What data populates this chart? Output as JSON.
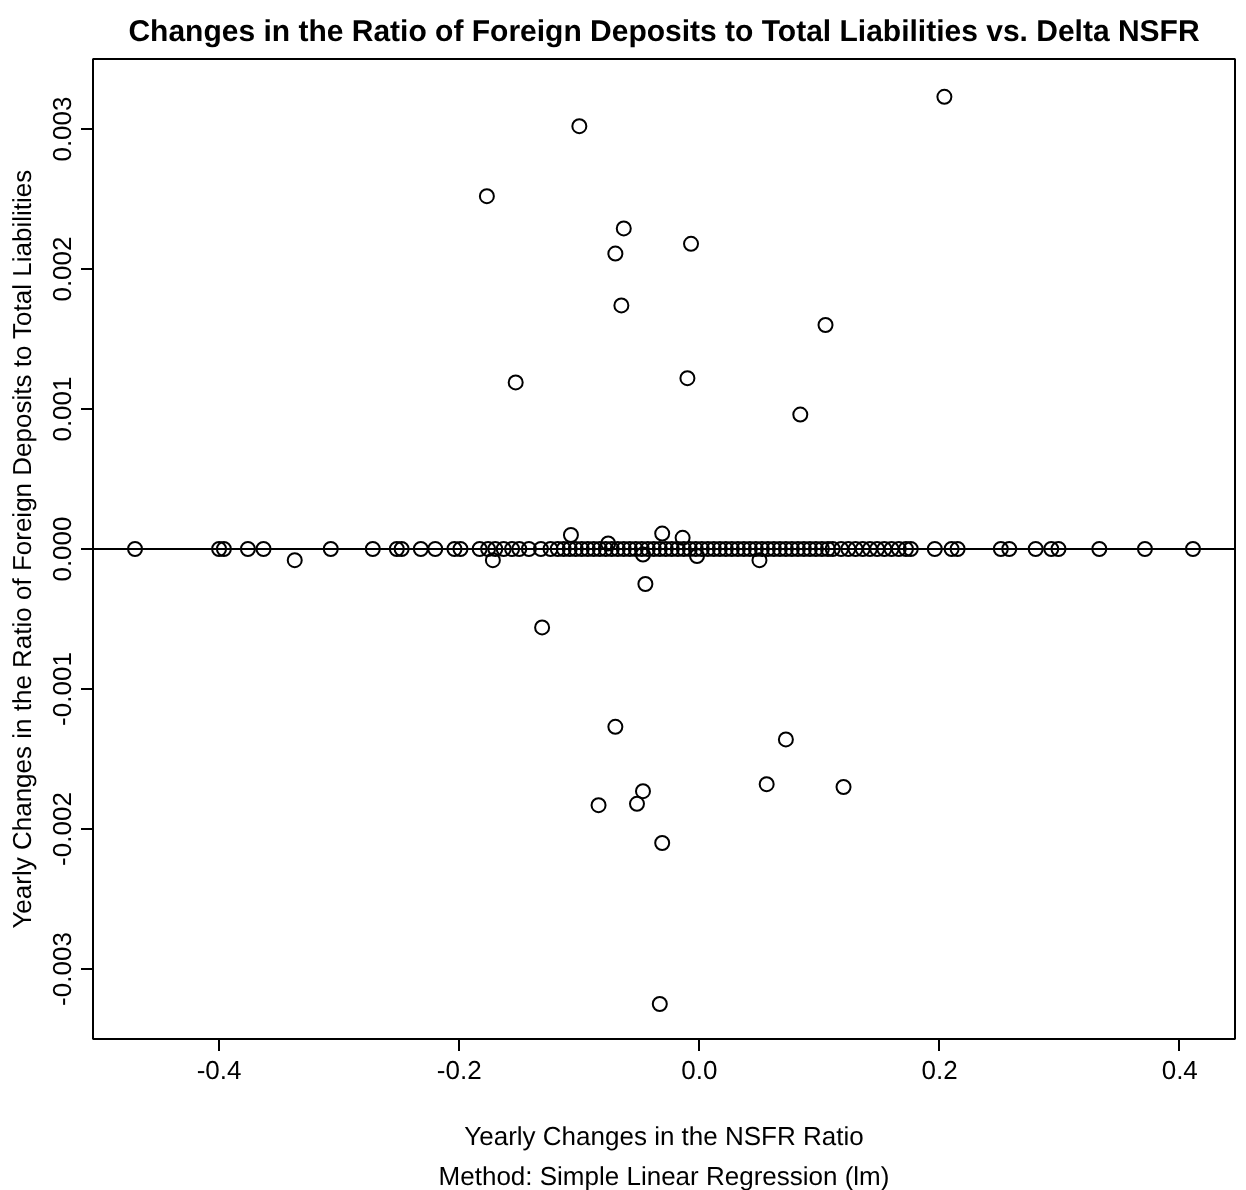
{
  "chart_data": {
    "type": "scatter",
    "title": "Changes in the Ratio of Foreign Deposits to Total Liabilities vs. Delta NSFR",
    "xlabel": "Yearly Changes in the NSFR Ratio",
    "ylabel": "Yearly Changes in the Ratio of Foreign Deposits to Total Liabilities",
    "annotations": [
      "Method: Simple Linear Regression (lm)"
    ],
    "xlim": [
      -0.505,
      0.446
    ],
    "ylim": [
      -0.0035,
      0.0035
    ],
    "xticks": [
      {
        "value": -0.4,
        "label": "-0.4"
      },
      {
        "value": -0.2,
        "label": "-0.2"
      },
      {
        "value": 0,
        "label": "0.0"
      },
      {
        "value": 0.2,
        "label": "0.2"
      },
      {
        "value": 0.4,
        "label": "0.4"
      }
    ],
    "yticks": [
      {
        "value": -0.003,
        "label": "-0.003"
      },
      {
        "value": -0.002,
        "label": "-0.002"
      },
      {
        "value": -0.001,
        "label": "-0.001"
      },
      {
        "value": 0,
        "label": "0.000"
      },
      {
        "value": 0.001,
        "label": "0.001"
      },
      {
        "value": 0.002,
        "label": "0.002"
      },
      {
        "value": 0.003,
        "label": "0.003"
      }
    ],
    "grid": false,
    "marker": "circle",
    "series": [
      {
        "color": "#000000",
        "x": [
          0.204,
          -0.1,
          -0.177,
          -0.063,
          -0.07,
          -0.007,
          -0.065,
          0.105,
          -0.153,
          -0.01,
          0.084,
          -0.131,
          -0.07,
          0.072,
          -0.084,
          -0.052,
          -0.047,
          0.056,
          0.12,
          -0.031,
          -0.033,
          -0.107,
          -0.031,
          -0.014,
          -0.076,
          -0.337,
          -0.172,
          -0.047,
          -0.045,
          -0.002,
          0.05,
          -0.47,
          -0.4,
          -0.396,
          -0.376,
          -0.363,
          -0.307,
          -0.272,
          -0.252,
          -0.248,
          -0.232,
          -0.22,
          -0.204,
          -0.199,
          -0.183,
          -0.176,
          -0.17,
          -0.163,
          -0.156,
          -0.15,
          -0.142,
          -0.132,
          -0.124,
          -0.118,
          -0.113,
          -0.108,
          -0.103,
          -0.098,
          -0.093,
          -0.088,
          -0.083,
          -0.078,
          -0.073,
          -0.068,
          -0.063,
          -0.058,
          -0.053,
          -0.048,
          -0.043,
          -0.038,
          -0.033,
          -0.028,
          -0.023,
          -0.018,
          -0.013,
          -0.008,
          -0.003,
          0.002,
          0.007,
          0.012,
          0.017,
          0.022,
          0.027,
          0.032,
          0.037,
          0.042,
          0.047,
          0.052,
          0.057,
          0.062,
          0.067,
          0.072,
          0.077,
          0.082,
          0.087,
          0.092,
          0.097,
          0.102,
          0.107,
          0.111,
          0.118,
          0.124,
          0.13,
          0.136,
          0.142,
          0.148,
          0.154,
          0.16,
          0.166,
          0.172,
          0.176,
          0.196,
          0.21,
          0.215,
          0.251,
          0.258,
          0.28,
          0.293,
          0.299,
          0.333,
          0.371,
          0.411
        ],
        "values": [
          0.00323,
          0.00302,
          0.00252,
          0.00229,
          0.00211,
          0.00218,
          0.00174,
          0.0016,
          0.00119,
          0.00122,
          0.00096,
          -0.00056,
          -0.00127,
          -0.00136,
          -0.00183,
          -0.00182,
          -0.00173,
          -0.00168,
          -0.0017,
          -0.0021,
          -0.00325,
          0.0001,
          0.00011,
          8e-05,
          4e-05,
          -8e-05,
          -8e-05,
          -4e-05,
          -0.00025,
          -5e-05,
          -8e-05,
          0,
          0,
          0,
          0,
          0,
          0,
          0,
          0,
          0,
          0,
          0,
          0,
          0,
          0,
          0,
          0,
          0,
          0,
          0,
          0,
          0,
          0,
          0,
          0,
          0,
          0,
          0,
          0,
          0,
          0,
          0,
          0,
          0,
          0,
          0,
          0,
          0,
          0,
          0,
          0,
          0,
          0,
          0,
          0,
          0,
          0,
          0,
          0,
          0,
          0,
          0,
          0,
          0,
          0,
          0,
          0,
          0,
          0,
          0,
          0,
          0,
          0,
          0,
          0,
          0,
          0,
          0,
          0,
          0,
          0,
          0,
          0,
          0,
          0,
          0,
          0,
          0,
          0,
          0,
          0,
          0,
          0,
          0,
          0,
          0,
          0,
          0,
          0,
          0,
          0,
          0
        ]
      },
      {
        "type": "line",
        "marker": "none",
        "color": "#000000",
        "x": [
          -0.505,
          0.446
        ],
        "values": [
          0,
          0
        ]
      }
    ]
  }
}
